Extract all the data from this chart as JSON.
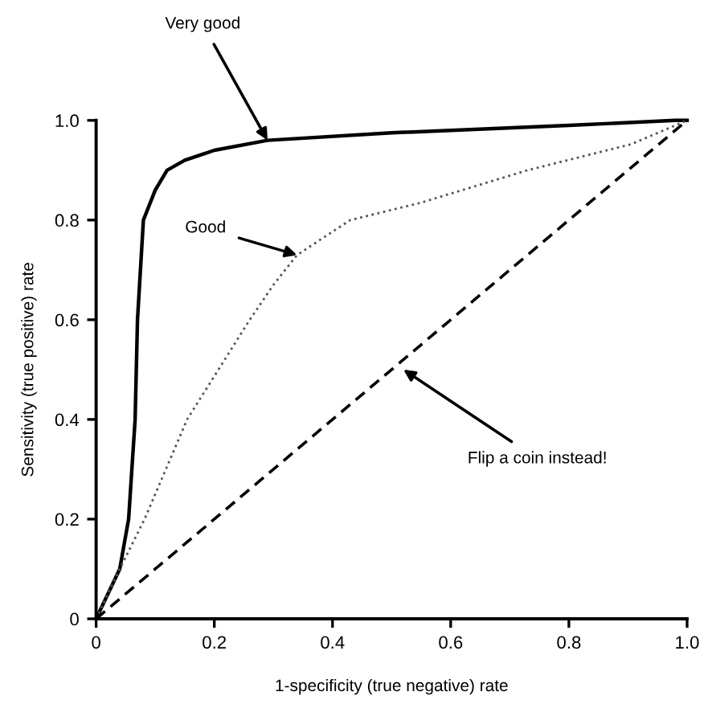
{
  "chart_data": {
    "type": "line",
    "xlabel": "1-specificity (true negative) rate",
    "ylabel": "Sensitivity (true positive) rate",
    "xlim": [
      0,
      1.0
    ],
    "ylim": [
      0,
      1.0
    ],
    "xticks": [
      0,
      0.2,
      0.4,
      0.6,
      0.8,
      {
        "value": 1.0,
        "label": "1.0"
      }
    ],
    "yticks": [
      0,
      0.2,
      0.4,
      0.6,
      0.8,
      {
        "value": 1.0,
        "label": "1.0"
      }
    ],
    "grid": false,
    "marker": "none",
    "series": [
      {
        "color": "#000000",
        "line_style": "solid",
        "x": [
          0,
          0.04,
          0.055,
          0.066,
          0.07,
          0.08,
          0.1,
          0.12,
          0.15,
          0.2,
          0.29,
          0.5,
          0.8,
          0.98,
          1.0
        ],
        "values": [
          0,
          0.1,
          0.2,
          0.4,
          0.6,
          0.8,
          0.86,
          0.9,
          0.92,
          0.94,
          0.96,
          0.975,
          0.99,
          1.0,
          1.0
        ]
      },
      {
        "color": "#555555",
        "line_style": "dotted",
        "x": [
          0,
          0.04,
          0.082,
          0.154,
          0.26,
          0.3,
          0.34,
          0.43,
          0.55,
          0.73,
          0.905,
          1.0
        ],
        "values": [
          0,
          0.1,
          0.2,
          0.4,
          0.6,
          0.67,
          0.73,
          0.8,
          0.835,
          0.9,
          0.952,
          1.0
        ]
      },
      {
        "color": "#000000",
        "line_style": "dashed",
        "x": [
          0,
          1.0
        ],
        "values": [
          0,
          1.0
        ]
      }
    ],
    "annotations": [
      {
        "text": "Very good",
        "x": 0.29,
        "y": 0.96
      },
      {
        "text": "Good",
        "x": 0.34,
        "y": 0.73
      },
      {
        "text": "Flip a coin instead!",
        "x": 0.52,
        "y": 0.5
      }
    ]
  }
}
